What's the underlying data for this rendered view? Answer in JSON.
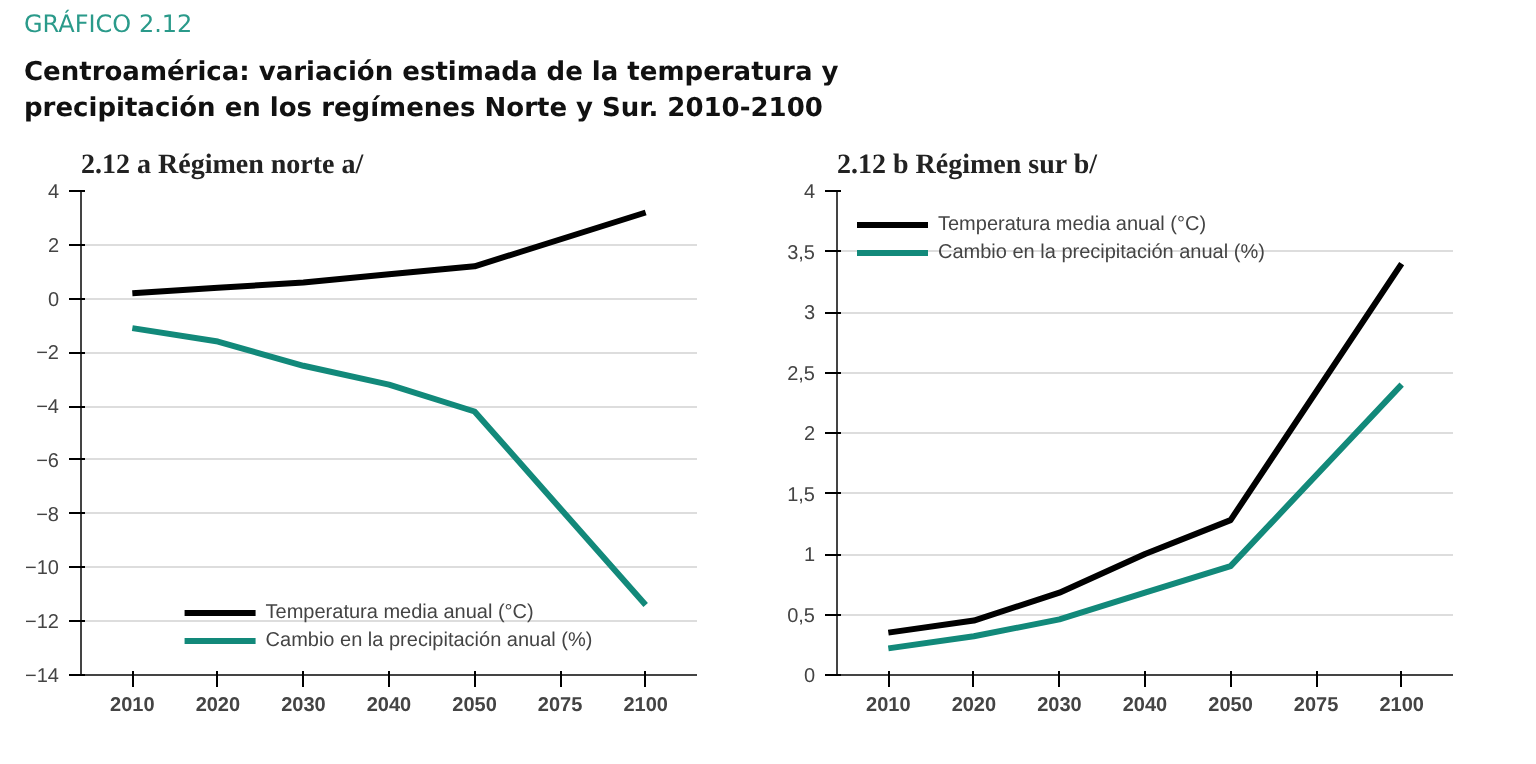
{
  "chart_data": [
    {
      "type": "line",
      "title": "2.12 a Régimen norte a/",
      "annotations": [
        "GRÁFICO 2.12",
        "Centroamérica: variación estimada de la temperatura y precipitación en los regímenes Norte y Sur. 2010-2100"
      ],
      "categories": [
        "2010",
        "2020",
        "2030",
        "2040",
        "2050",
        "2075",
        "2100"
      ],
      "series": [
        {
          "name": "Temperatura media anual (°C)",
          "color": "#000000",
          "values": [
            0.2,
            0.4,
            0.6,
            0.9,
            1.2,
            null,
            3.2
          ]
        },
        {
          "name": "Cambio en la precipitación anual (%)",
          "color": "#12897a",
          "values": [
            -1.1,
            -1.6,
            -2.5,
            -3.2,
            -4.2,
            null,
            -11.4
          ]
        }
      ],
      "ylim": [
        -14,
        4
      ],
      "yticks": [
        -14,
        -12,
        -10,
        -8,
        -6,
        -4,
        -2,
        0,
        2,
        4
      ],
      "grid": "y",
      "legend": "bottom",
      "marker": "none",
      "line_style": "solid"
    },
    {
      "type": "line",
      "title": "2.12 b Régimen sur b/",
      "categories": [
        "2010",
        "2020",
        "2030",
        "2040",
        "2050",
        "2075",
        "2100"
      ],
      "series": [
        {
          "name": "Temperatura media anual (°C)",
          "color": "#000000",
          "values": [
            0.35,
            0.45,
            0.68,
            1.0,
            1.28,
            null,
            3.4
          ]
        },
        {
          "name": "Cambio en la precipitación anual (%)",
          "color": "#12897a",
          "values": [
            0.22,
            0.32,
            0.46,
            0.68,
            0.9,
            null,
            2.4
          ]
        }
      ],
      "ylim": [
        0,
        4
      ],
      "yticks": [
        0,
        {
          "value": 0.5,
          "label": "0,5"
        },
        1,
        {
          "value": 1.5,
          "label": "1,5"
        },
        2,
        {
          "value": 2.5,
          "label": "2,5"
        },
        3,
        {
          "value": 3.5,
          "label": "3,5"
        },
        4
      ],
      "grid": "y",
      "legend": "top left",
      "marker": "none",
      "line_style": "solid"
    }
  ]
}
